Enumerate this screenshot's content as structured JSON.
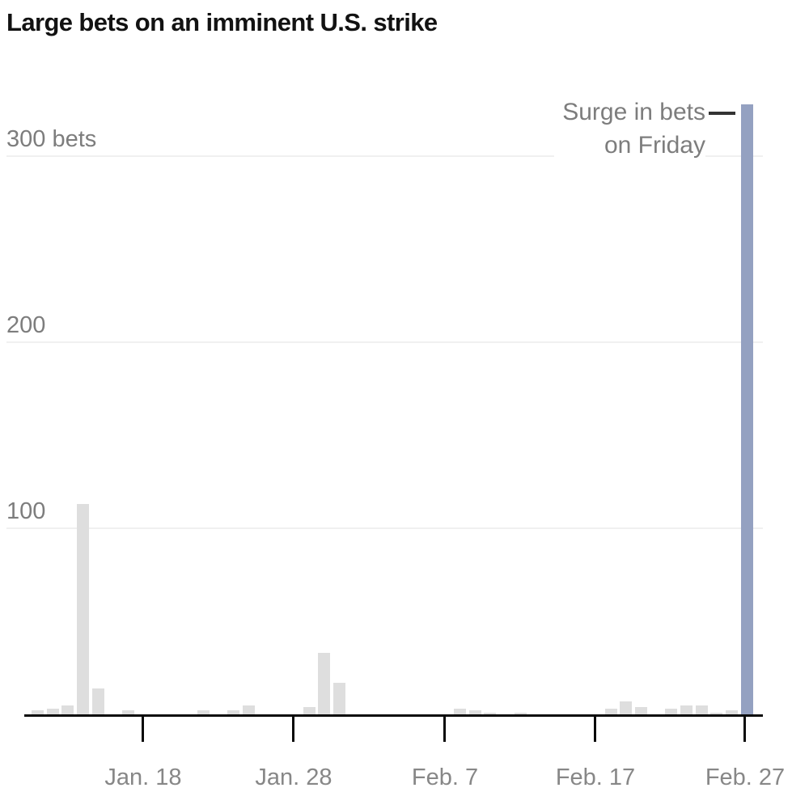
{
  "title": "Large bets on an imminent U.S. strike",
  "annotation": {
    "line1": "Surge in bets",
    "line2": "on Friday"
  },
  "y_axis": {
    "unit": "bets",
    "labels": [
      "300 bets",
      "200",
      "100"
    ]
  },
  "x_axis": {
    "labels": [
      "Jan. 18",
      "Jan. 28",
      "Feb. 7",
      "Feb. 17",
      "Feb. 27"
    ],
    "tick_days": [
      7,
      17,
      27,
      37,
      47
    ]
  },
  "colors": {
    "bar_default": "#dedede",
    "bar_highlight": "#94a1c1",
    "gridline": "#f0f0f0",
    "axis": "#0a0a0a",
    "label_gray": "#7d7d7d",
    "annotation_connector": "#333333",
    "title_text": "#121212"
  },
  "chart_data": {
    "type": "bar",
    "title": "Large bets on an imminent U.S. strike",
    "xlabel": "",
    "ylabel": "bets",
    "ylim": [
      0,
      340
    ],
    "yticks": [
      100,
      200,
      300
    ],
    "xtick_labels": [
      "Jan. 18",
      "Jan. 28",
      "Feb. 7",
      "Feb. 17",
      "Feb. 27"
    ],
    "grid": "horizontal",
    "legend": "none",
    "annotation": "Surge in bets on Friday (points to Feb. 27 bar)",
    "points": [
      {
        "date": "Jan. 11",
        "day": 0,
        "value": 2,
        "highlight": false
      },
      {
        "date": "Jan. 12",
        "day": 1,
        "value": 3,
        "highlight": false
      },
      {
        "date": "Jan. 13",
        "day": 2,
        "value": 5,
        "highlight": false
      },
      {
        "date": "Jan. 14",
        "day": 3,
        "value": 113,
        "highlight": false
      },
      {
        "date": "Jan. 15",
        "day": 4,
        "value": 14,
        "highlight": false
      },
      {
        "date": "Jan. 17",
        "day": 6,
        "value": 2,
        "highlight": false
      },
      {
        "date": "Jan. 22",
        "day": 11,
        "value": 2,
        "highlight": false
      },
      {
        "date": "Jan. 24",
        "day": 13,
        "value": 2,
        "highlight": false
      },
      {
        "date": "Jan. 25",
        "day": 14,
        "value": 5,
        "highlight": false
      },
      {
        "date": "Jan. 29",
        "day": 18,
        "value": 4,
        "highlight": false
      },
      {
        "date": "Jan. 30",
        "day": 19,
        "value": 33,
        "highlight": false
      },
      {
        "date": "Jan. 31",
        "day": 20,
        "value": 17,
        "highlight": false
      },
      {
        "date": "Feb. 8",
        "day": 28,
        "value": 3,
        "highlight": false
      },
      {
        "date": "Feb. 9",
        "day": 29,
        "value": 2,
        "highlight": false
      },
      {
        "date": "Feb. 10",
        "day": 30,
        "value": 1,
        "highlight": false
      },
      {
        "date": "Feb. 12",
        "day": 32,
        "value": 1,
        "highlight": false
      },
      {
        "date": "Feb. 18",
        "day": 38,
        "value": 3,
        "highlight": false
      },
      {
        "date": "Feb. 19",
        "day": 39,
        "value": 7,
        "highlight": false
      },
      {
        "date": "Feb. 20",
        "day": 40,
        "value": 4,
        "highlight": false
      },
      {
        "date": "Feb. 22",
        "day": 42,
        "value": 3,
        "highlight": false
      },
      {
        "date": "Feb. 23",
        "day": 43,
        "value": 5,
        "highlight": false
      },
      {
        "date": "Feb. 24",
        "day": 44,
        "value": 5,
        "highlight": false
      },
      {
        "date": "Feb. 25",
        "day": 45,
        "value": 1,
        "highlight": false
      },
      {
        "date": "Feb. 26",
        "day": 46,
        "value": 2,
        "highlight": false
      },
      {
        "date": "Feb. 27",
        "day": 47,
        "value": 328,
        "highlight": true
      }
    ]
  }
}
